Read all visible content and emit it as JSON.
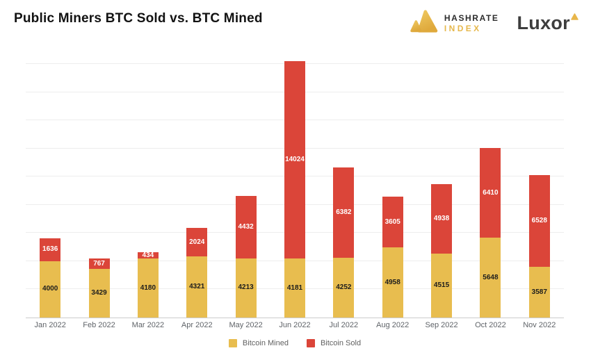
{
  "header": {
    "title": "Public Miners BTC Sold vs. BTC Mined",
    "hashrate_logo": {
      "line1": "HASHRATE",
      "line2": "INDEX"
    },
    "luxor_logo": {
      "text": "Luxor"
    }
  },
  "colors": {
    "mined": "#e8bd4f",
    "sold": "#db4539",
    "gridline": "#ededed",
    "axis": "#cccccc",
    "logo_gold": "#e2ac3f",
    "logo_gold_light": "#eec75f"
  },
  "chart_data": {
    "type": "bar",
    "stacked": true,
    "title": "Public Miners BTC Sold vs. BTC Mined",
    "categories": [
      "Jan 2022",
      "Feb 2022",
      "Mar 2022",
      "Apr 2022",
      "May 2022",
      "Jun 2022",
      "Jul 2022",
      "Aug 2022",
      "Sep 2022",
      "Oct 2022",
      "Nov 2022"
    ],
    "series": [
      {
        "name": "Bitcoin Mined",
        "color": "#e8bd4f",
        "label_color": "#1c1c1c",
        "values": [
          4000,
          3429,
          4180,
          4321,
          4213,
          4181,
          4252,
          4958,
          4515,
          5648,
          3587
        ]
      },
      {
        "name": "Bitcoin Sold",
        "color": "#db4539",
        "label_color": "#ffffff",
        "values": [
          1636,
          767,
          434,
          2024,
          4432,
          14024,
          6382,
          3605,
          4938,
          6410,
          6528
        ]
      }
    ],
    "xlabel": "",
    "ylabel": "",
    "y_axis_labels_visible": false,
    "ylim": [
      0,
      18000
    ],
    "gridline_step": 2000,
    "grid": true,
    "legend_position": "bottom"
  }
}
